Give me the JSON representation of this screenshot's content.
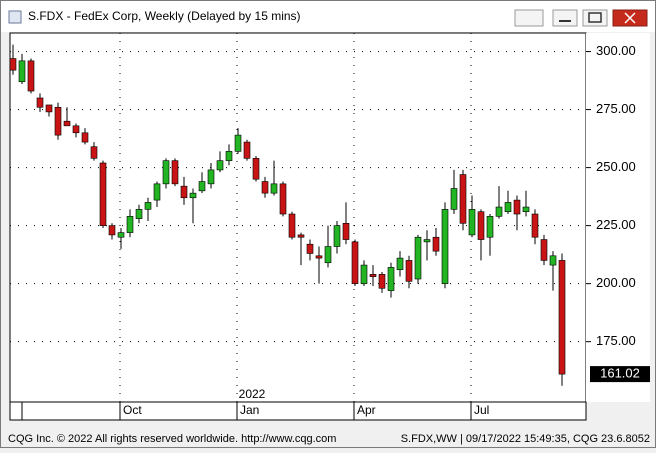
{
  "window": {
    "title": "S.FDX - FedEx Corp, Weekly (Delayed by 15 mins)"
  },
  "footer": {
    "left": "CQG Inc. © 2022 All rights reserved worldwide. http://www.cqg.com",
    "right": "S.FDX,WW | 09/17/2022 15:49:35, CQG 23.6.8052"
  },
  "chart_data": {
    "type": "candlestick",
    "annotation": "2022",
    "categories": [
      null,
      null,
      null,
      null,
      null,
      null,
      null,
      null,
      null,
      null,
      null,
      null,
      "Oct",
      null,
      null,
      null,
      null,
      null,
      null,
      null,
      null,
      null,
      null,
      null,
      null,
      "Jan",
      null,
      null,
      null,
      null,
      null,
      null,
      null,
      null,
      null,
      null,
      null,
      null,
      "Apr",
      null,
      null,
      null,
      null,
      null,
      null,
      null,
      null,
      null,
      null,
      null,
      null,
      "Jul",
      null,
      null,
      null,
      null,
      null,
      null,
      null,
      null,
      null,
      null
    ],
    "open": [
      297,
      287,
      296,
      280,
      277,
      276,
      270,
      268,
      265,
      259,
      252,
      225,
      220,
      222,
      228,
      232,
      236,
      243,
      253,
      242,
      237,
      240,
      243,
      249,
      253,
      257,
      261,
      254,
      244,
      239,
      243,
      230,
      221,
      217,
      212,
      209,
      216,
      226,
      218,
      200,
      204,
      204,
      197,
      206,
      210,
      202,
      218,
      220,
      200,
      232,
      247,
      221,
      231,
      220,
      229,
      231,
      236,
      231,
      230,
      219,
      208,
      210
    ],
    "high": [
      303,
      299,
      297,
      282,
      277,
      278,
      276,
      269,
      267,
      261,
      253,
      226,
      224,
      232,
      234,
      237,
      244,
      254,
      254,
      246,
      241,
      248,
      252,
      257,
      260,
      267,
      262,
      255,
      246,
      253,
      244,
      231,
      222,
      219,
      216,
      225,
      227,
      235,
      219,
      210,
      208,
      205,
      209,
      214,
      212,
      221,
      223,
      224,
      235,
      249,
      249,
      238,
      232,
      230,
      242,
      240,
      238,
      240,
      232,
      221,
      214,
      213
    ],
    "low": [
      290,
      286,
      282,
      274,
      272,
      262,
      268,
      263,
      260,
      253,
      224,
      219,
      215,
      220,
      226,
      227,
      233,
      241,
      242,
      234,
      226,
      239,
      241,
      248,
      251,
      256,
      253,
      244,
      237,
      238,
      229,
      219,
      208,
      210,
      200,
      207,
      213,
      217,
      199,
      199,
      199,
      196,
      194,
      203,
      198,
      200,
      210,
      212,
      198,
      230,
      223,
      220,
      210,
      212,
      228,
      230,
      223,
      229,
      217,
      208,
      197,
      156
    ],
    "close": [
      292,
      296,
      283,
      276,
      274,
      264,
      268,
      265,
      261,
      254,
      225,
      221,
      222,
      229,
      232,
      235,
      243,
      253,
      243,
      237,
      239,
      244,
      249,
      253,
      257,
      264,
      254,
      245,
      239,
      243,
      230,
      220,
      220,
      213,
      211,
      216,
      225,
      219,
      200,
      208,
      203,
      198,
      207,
      211,
      201,
      220,
      219,
      214,
      232,
      241,
      226,
      232,
      219,
      229,
      233,
      235,
      230,
      233,
      220,
      210,
      212,
      161.02
    ],
    "up_color": "#22b422",
    "down_color": "#c81414",
    "last_price": 161.02,
    "ylim": [
      149,
      308
    ],
    "yticks": [
      {
        "value": 175,
        "label": "175.00"
      },
      {
        "value": 200,
        "label": "200.00"
      },
      {
        "value": 225,
        "label": "225.00"
      },
      {
        "value": 250,
        "label": "250.00"
      },
      {
        "value": 275,
        "label": "275.00"
      },
      {
        "value": 300,
        "label": "300.00"
      }
    ],
    "grid": true
  }
}
